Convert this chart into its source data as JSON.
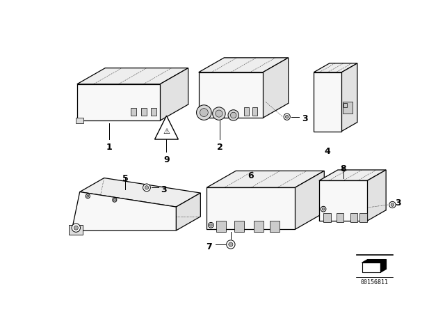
{
  "bg_color": "#ffffff",
  "diagram_id": "00156811",
  "line_color": "#000000",
  "lw_main": 0.9,
  "lw_dot": 0.5,
  "fc_main": "#f8f8f8",
  "fc_top": "#eeeeee",
  "fc_side": "#e0e0e0"
}
